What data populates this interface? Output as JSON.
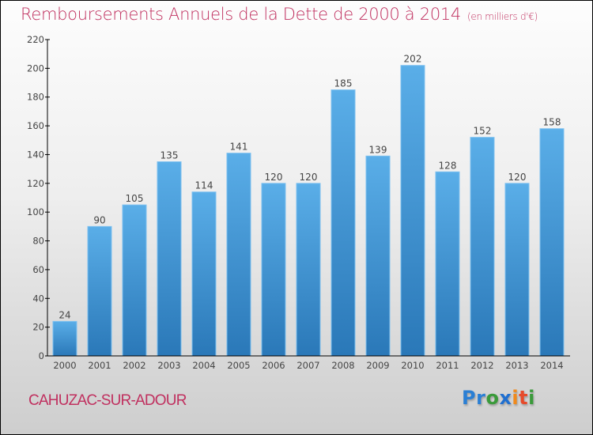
{
  "header": {
    "title": "Remboursements Annuels de la Dette de 2000 à 2014",
    "unit": "(en milliers d'€)"
  },
  "footer": {
    "city": "CAHUZAC-SUR-ADOUR",
    "logo": {
      "letters": [
        {
          "char": "P",
          "color": "#2a7fd4"
        },
        {
          "char": "r",
          "color": "#2a7fd4"
        },
        {
          "char": "o",
          "color": "#3a9a3a"
        },
        {
          "char": "x",
          "color": "#1f6fd0"
        },
        {
          "char": "i",
          "color": "#f08a1c"
        },
        {
          "char": "t",
          "color": "#e64a2a"
        },
        {
          "char": "i",
          "color": "#3a9a3a"
        }
      ]
    }
  },
  "colors": {
    "title": "#c0305f",
    "bar_top": "#5aaee8",
    "bar_bottom": "#2a78b8",
    "bar_edge": "#7cc0f0"
  },
  "chart_data": {
    "type": "bar",
    "title": "Remboursements Annuels de la Dette de 2000 à 2014",
    "subtitle": "(en milliers d'€)",
    "xlabel": "",
    "ylabel": "",
    "categories": [
      "2000",
      "2001",
      "2002",
      "2003",
      "2004",
      "2005",
      "2006",
      "2007",
      "2008",
      "2009",
      "2010",
      "2011",
      "2012",
      "2013",
      "2014"
    ],
    "values": [
      24,
      90,
      105,
      135,
      114,
      141,
      120,
      120,
      185,
      139,
      202,
      128,
      152,
      120,
      158
    ],
    "ylim": [
      0,
      220
    ],
    "yticks": [
      0,
      20,
      40,
      60,
      80,
      100,
      120,
      140,
      160,
      180,
      200,
      220
    ],
    "grid": false,
    "legend": "none",
    "data_labels": true
  }
}
